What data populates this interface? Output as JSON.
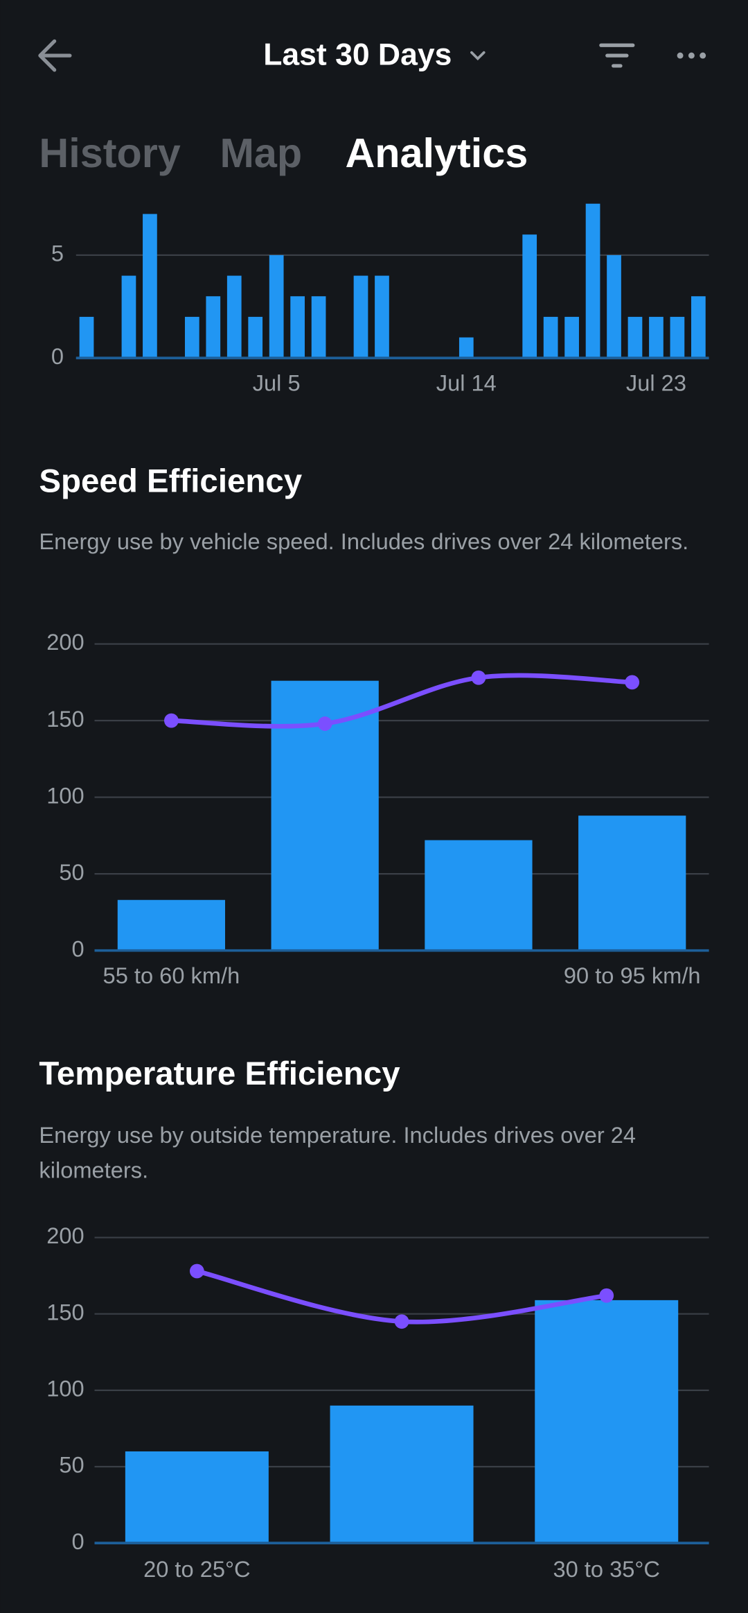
{
  "header": {
    "title": "Last 30 Days"
  },
  "tabs": [
    "History",
    "Map",
    "Analytics"
  ],
  "active_tab": 2,
  "chart_data": [
    {
      "type": "bar",
      "categories": [
        null,
        null,
        null,
        null,
        null,
        null,
        null,
        null,
        null,
        "Jul 5",
        null,
        null,
        null,
        null,
        null,
        null,
        null,
        null,
        "Jul 14",
        null,
        null,
        null,
        null,
        null,
        null,
        null,
        null,
        "Jul 23",
        null,
        null
      ],
      "values": [
        2,
        0,
        4,
        7,
        0,
        2,
        3,
        4,
        2,
        5,
        3,
        3,
        0,
        4,
        4,
        0,
        0,
        0,
        1,
        0,
        0,
        6,
        2,
        2,
        7.5,
        5,
        2,
        2,
        2,
        3
      ],
      "color": "#2196f3",
      "ylim": [
        0,
        7.6
      ],
      "yticks": [
        0,
        5
      ],
      "grid": true
    },
    {
      "type": "bar",
      "title": "Speed Efficiency",
      "subtitle": "Energy use by vehicle speed. Includes drives over 24 kilometers.",
      "categories": [
        "55 to 60 km/h",
        null,
        null,
        "90 to 95 km/h"
      ],
      "series": [
        {
          "type": "bar",
          "color": "#2196f3",
          "values": [
            33,
            176,
            72,
            88
          ]
        },
        {
          "type": "line",
          "color": "#7b4fff",
          "values": [
            150,
            148,
            178,
            175
          ]
        }
      ],
      "ylim": [
        0,
        200
      ],
      "yticks": [
        0,
        50,
        100,
        150,
        200
      ],
      "grid": true
    },
    {
      "type": "bar",
      "title": "Temperature Efficiency",
      "subtitle": "Energy use by outside temperature. Includes drives over 24 kilometers.",
      "categories": [
        "20 to 25°C",
        null,
        "30 to 35°C"
      ],
      "series": [
        {
          "type": "bar",
          "color": "#2196f3",
          "values": [
            60,
            90,
            159
          ]
        },
        {
          "type": "line",
          "color": "#7b4fff",
          "values": [
            178,
            145,
            162
          ]
        }
      ],
      "ylim": [
        0,
        200
      ],
      "yticks": [
        0,
        50,
        100,
        150,
        200
      ],
      "grid": true
    }
  ]
}
